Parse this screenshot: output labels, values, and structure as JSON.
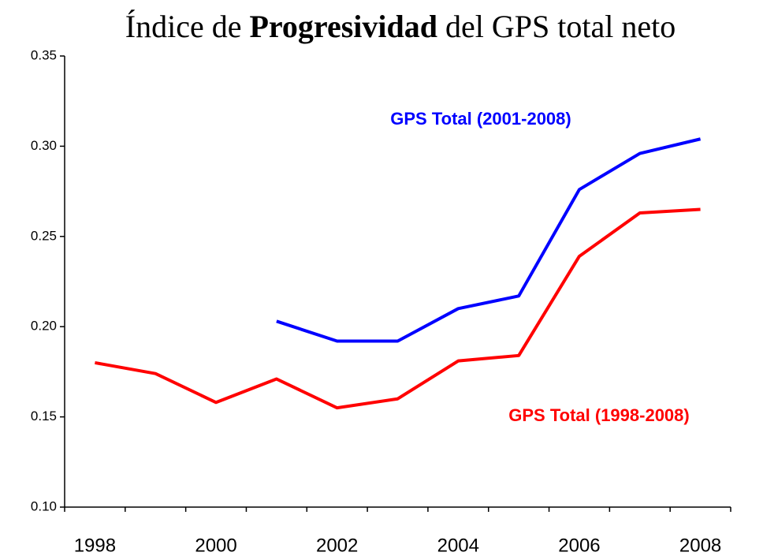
{
  "chart_data": {
    "type": "line",
    "title": [
      "Índice de ",
      "Progresividad",
      " del GPS total neto"
    ],
    "categories": [
      "1998",
      null,
      "2000",
      null,
      "2002",
      null,
      "2004",
      null,
      "2006",
      null,
      "2008"
    ],
    "series": [
      {
        "name": "GPS Total (2001-2008)",
        "color": "#0000ff",
        "values": [
          null,
          null,
          null,
          0.203,
          0.192,
          0.192,
          0.21,
          0.217,
          0.276,
          0.296,
          0.304
        ]
      },
      {
        "name": "GPS Total (1998-2008)",
        "color": "#ff0000",
        "values": [
          0.18,
          0.174,
          0.158,
          0.171,
          0.155,
          0.16,
          0.181,
          0.184,
          0.239,
          0.263,
          0.265
        ]
      }
    ],
    "ylim": [
      0.1,
      0.35
    ],
    "yticks": [
      {
        "value": 0.1,
        "label": "0.10"
      },
      {
        "value": 0.15,
        "label": "0.15"
      },
      {
        "value": 0.2,
        "label": "0.20"
      },
      {
        "value": 0.25,
        "label": "0.25"
      },
      {
        "value": 0.3,
        "label": "0.30"
      },
      {
        "value": 0.35,
        "label": "0.35"
      }
    ],
    "grid": false
  }
}
